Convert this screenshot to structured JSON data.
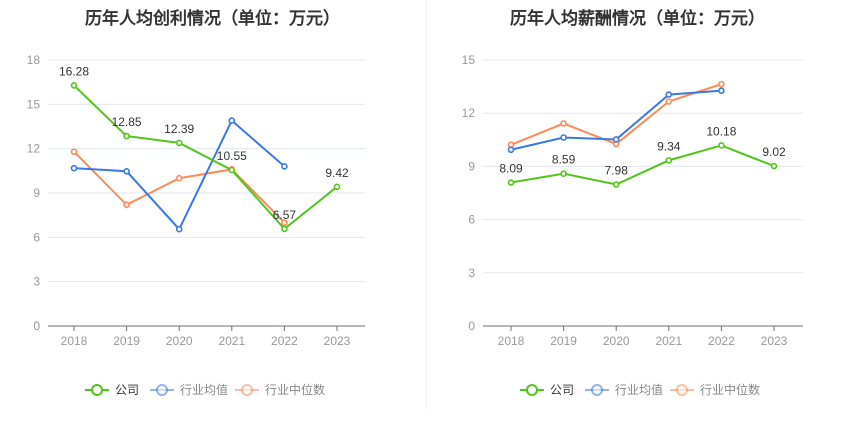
{
  "chart_data": [
    {
      "type": "line",
      "title": "历年人均创利情况（单位：万元）",
      "categories": [
        "2018",
        "2019",
        "2020",
        "2021",
        "2022",
        "2023"
      ],
      "ylim": [
        0,
        18
      ],
      "yticks": [
        0,
        3,
        6,
        9,
        12,
        15,
        18
      ],
      "grid": true,
      "legend": "bottom",
      "series": [
        {
          "name": "公司",
          "color": "#52c41a",
          "values": [
            16.28,
            12.85,
            12.39,
            10.55,
            6.57,
            9.42
          ],
          "labels": true
        },
        {
          "name": "行业均值",
          "color": "#3a78e6",
          "values": [
            10.68,
            10.47,
            6.55,
            13.9,
            10.8,
            null
          ]
        },
        {
          "name": "行业中位数",
          "color": "#ff8a56",
          "values": [
            11.8,
            8.2,
            10.0,
            10.6,
            7.0,
            null
          ]
        }
      ]
    },
    {
      "type": "line",
      "title": "历年人均薪酬情况（单位：万元）",
      "categories": [
        "2018",
        "2019",
        "2020",
        "2021",
        "2022",
        "2023"
      ],
      "ylim": [
        0,
        15
      ],
      "yticks": [
        0,
        3,
        6,
        9,
        12,
        15
      ],
      "grid": true,
      "legend": "bottom",
      "series": [
        {
          "name": "公司",
          "color": "#52c41a",
          "values": [
            8.09,
            8.59,
            7.98,
            9.34,
            10.18,
            9.02
          ],
          "labels": true
        },
        {
          "name": "行业均值",
          "color": "#3a78e6",
          "values": [
            9.94,
            10.63,
            10.52,
            13.05,
            13.27,
            null
          ]
        },
        {
          "name": "行业中位数",
          "color": "#ff8a56",
          "values": [
            10.22,
            11.42,
            10.26,
            12.66,
            13.64,
            null
          ]
        }
      ]
    }
  ]
}
